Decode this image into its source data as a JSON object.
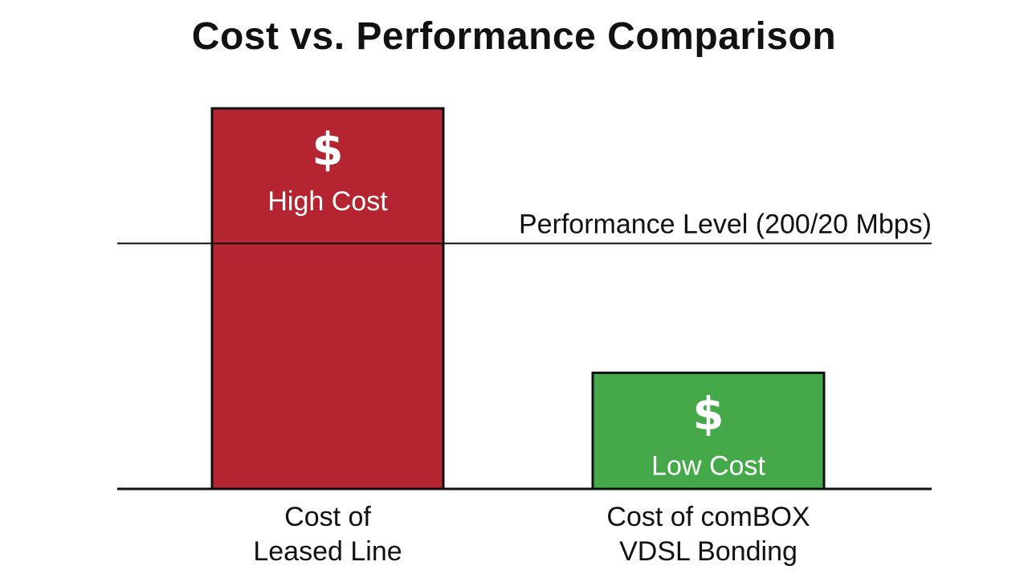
{
  "chart_data": {
    "type": "bar",
    "title": "Cost vs. Performance Comparison",
    "xlabel": "",
    "ylabel": "",
    "ylim": [
      0,
      100
    ],
    "grid": false,
    "categories": [
      [
        "Cost of",
        "Leased Line"
      ],
      [
        "Cost of comBOX",
        "VDSL Bonding"
      ]
    ],
    "values": [
      100,
      30.5
    ],
    "bar_labels": [
      "High Cost",
      "Low Cost"
    ],
    "bar_icons": [
      "dollar-sign-icon",
      "dollar-sign-icon"
    ],
    "bar_icon_glyph": "$",
    "bar_colors": [
      "#b52531",
      "#45a94a"
    ],
    "reference_line": {
      "label": "Performance Level (200/20 Mbps)",
      "value": 64.5
    }
  }
}
